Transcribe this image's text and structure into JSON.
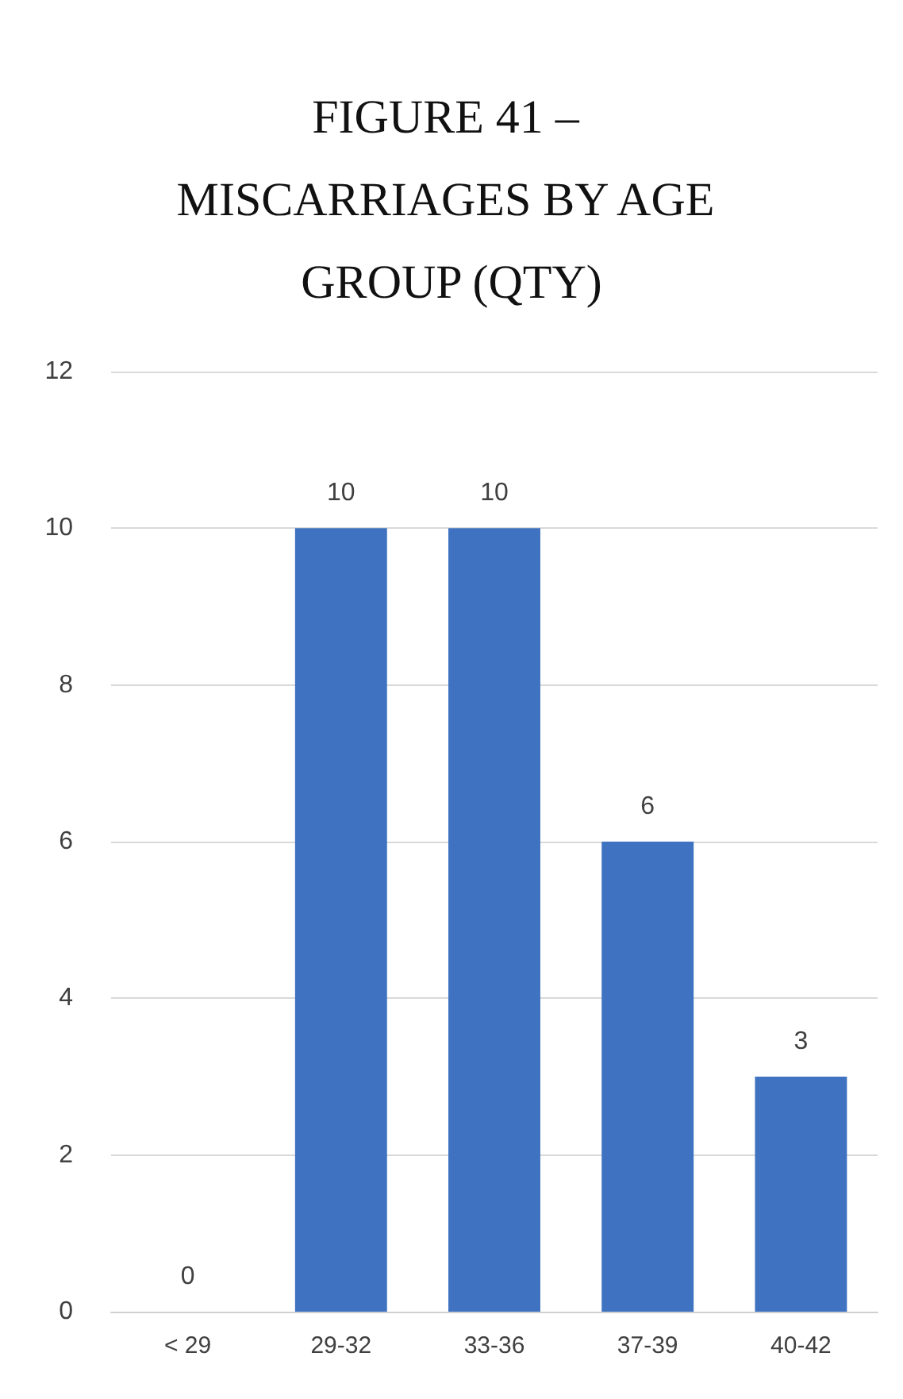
{
  "chart_data": {
    "type": "bar",
    "title": "FIGURE 41 – MISCARRIAGES BY AGE GROUP (QTY)",
    "categories": [
      "< 29",
      "29-32",
      "33-36",
      "37-39",
      "40-42"
    ],
    "values": [
      0,
      10,
      10,
      6,
      3
    ],
    "color": "#3f72c0",
    "ylim": [
      0,
      12
    ],
    "yticks": [
      0,
      2,
      4,
      6,
      8,
      10,
      12
    ],
    "grid": "y",
    "data_labels": true
  }
}
